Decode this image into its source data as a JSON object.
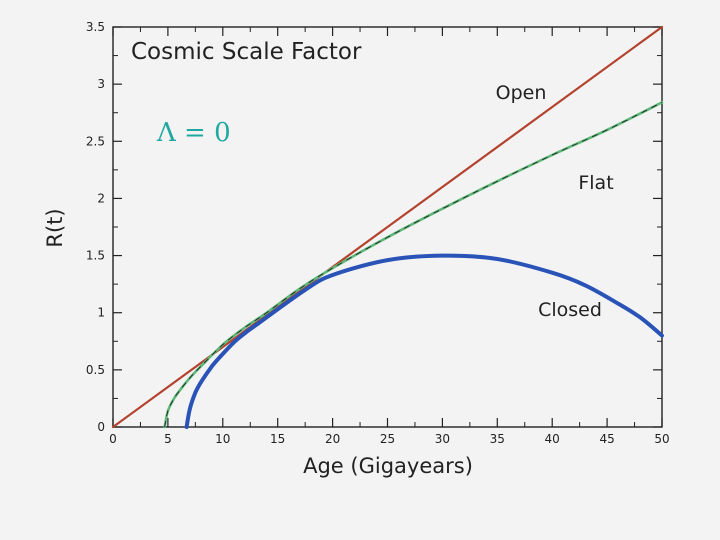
{
  "chart_data": {
    "type": "line",
    "title": "Cosmic Scale Factor",
    "xlabel": "Age (Gigayears)",
    "ylabel": "R(t)",
    "xlim": [
      0,
      50
    ],
    "ylim": [
      0,
      3.5
    ],
    "xticks": [
      0,
      5,
      10,
      15,
      20,
      25,
      30,
      35,
      40,
      45,
      50
    ],
    "yticks": [
      0,
      0.5,
      1,
      1.5,
      2,
      2.5,
      3,
      3.5
    ],
    "annotation": "Λ = 0",
    "annotation_color": "#1fa8a0",
    "grid": false,
    "series": [
      {
        "name": "Open",
        "color": "#b3432e",
        "x": [
          0,
          50
        ],
        "y": [
          0,
          3.5
        ]
      },
      {
        "name": "Flat",
        "color": "#5fb87a",
        "x": [
          4.7,
          5.0,
          5.5,
          6.0,
          7.0,
          8.0,
          10.0,
          12.0,
          14.0,
          17.0,
          20.0,
          25.0,
          30.0,
          35.0,
          40.0,
          45.0,
          50.0
        ],
        "y": [
          0.0,
          0.14,
          0.24,
          0.31,
          0.43,
          0.53,
          0.72,
          0.87,
          1.0,
          1.21,
          1.39,
          1.66,
          1.91,
          2.15,
          2.38,
          2.6,
          2.84
        ]
      },
      {
        "name": "Closed",
        "color": "#2a53b8",
        "x": [
          6.7,
          7.0,
          7.5,
          8.0,
          9.0,
          10.0,
          11.0,
          12.0,
          13.0,
          17.5,
          20.0,
          25.0,
          30.0,
          35.0,
          40.0,
          43.0,
          46.0,
          48.0,
          50.0
        ],
        "y": [
          0.0,
          0.16,
          0.3,
          0.39,
          0.53,
          0.64,
          0.74,
          0.82,
          0.89,
          1.2,
          1.33,
          1.46,
          1.5,
          1.47,
          1.35,
          1.24,
          1.08,
          0.96,
          0.8
        ]
      }
    ]
  }
}
